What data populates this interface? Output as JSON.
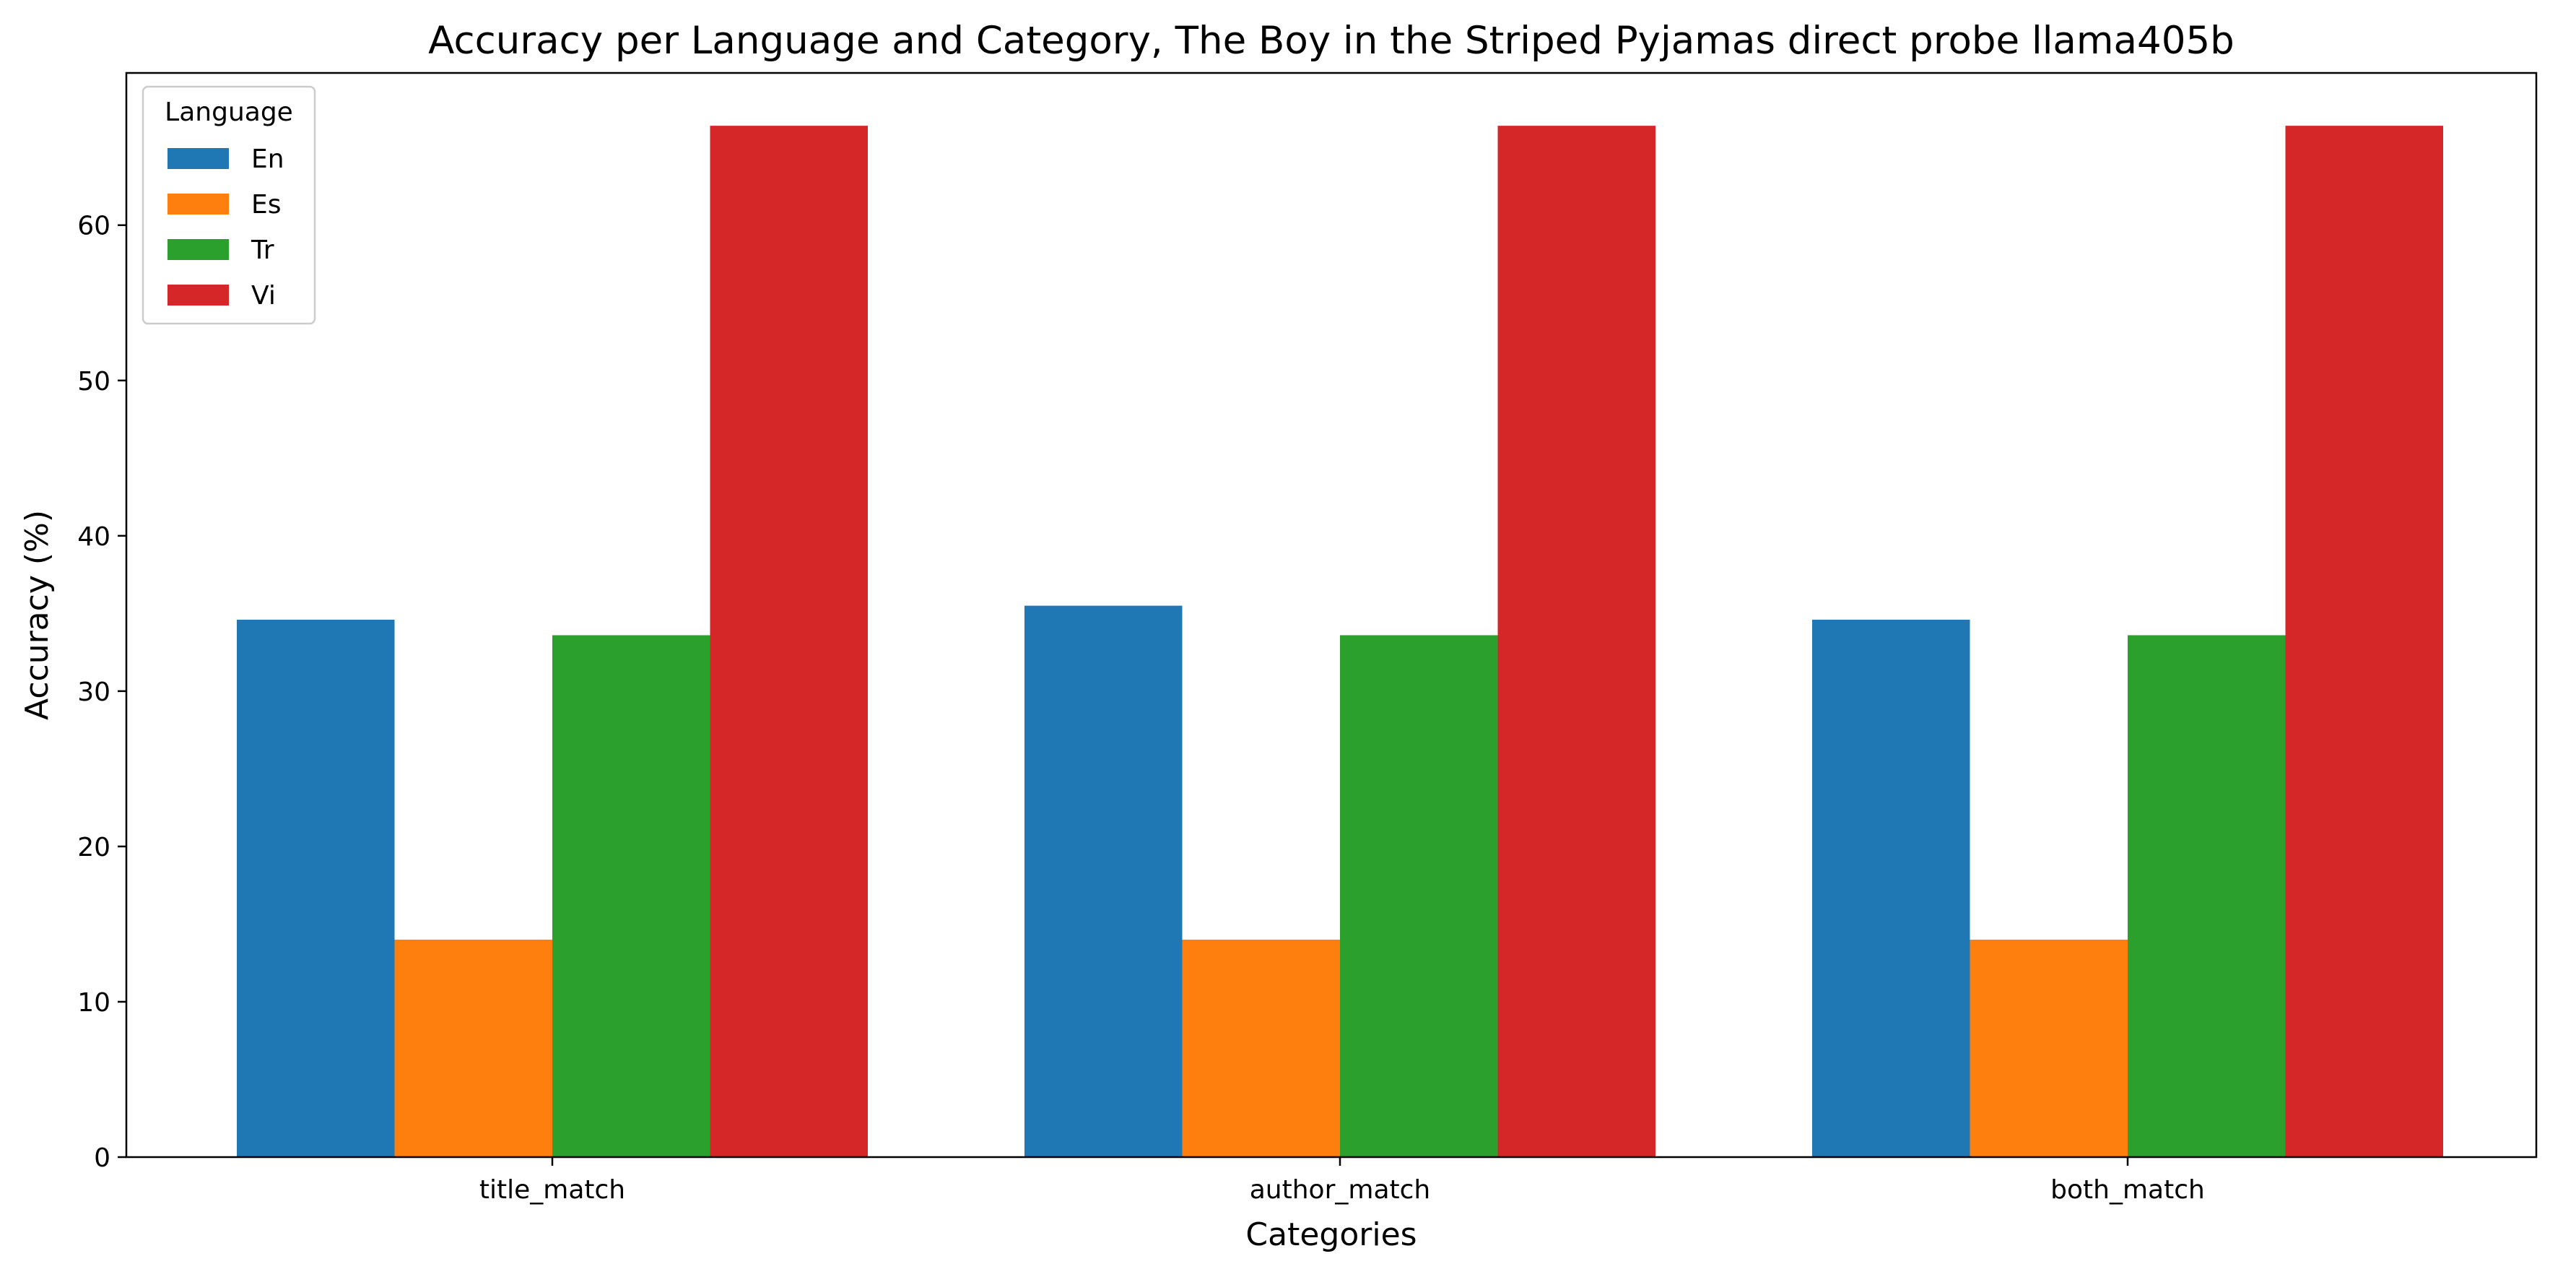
{
  "chart_data": {
    "type": "bar",
    "title": "Accuracy per Language and Category, The Boy in the Striped Pyjamas direct probe llama405b",
    "xlabel": "Categories",
    "ylabel": "Accuracy (%)",
    "categories": [
      "title_match",
      "author_match",
      "both_match"
    ],
    "series": [
      {
        "name": "En",
        "color": "#1f77b4",
        "values": [
          34.6,
          35.5,
          34.6
        ]
      },
      {
        "name": "Es",
        "color": "#ff7f0e",
        "values": [
          14.0,
          14.0,
          14.0
        ]
      },
      {
        "name": "Tr",
        "color": "#2ca02c",
        "values": [
          33.6,
          33.6,
          33.6
        ]
      },
      {
        "name": "Vi",
        "color": "#d62728",
        "values": [
          66.4,
          66.4,
          66.4
        ]
      }
    ],
    "ylim": [
      0,
      69.8
    ],
    "yticks": [
      0,
      10,
      20,
      30,
      40,
      50,
      60
    ],
    "grid": false,
    "legend": {
      "title": "Language",
      "position": "top-left"
    }
  }
}
